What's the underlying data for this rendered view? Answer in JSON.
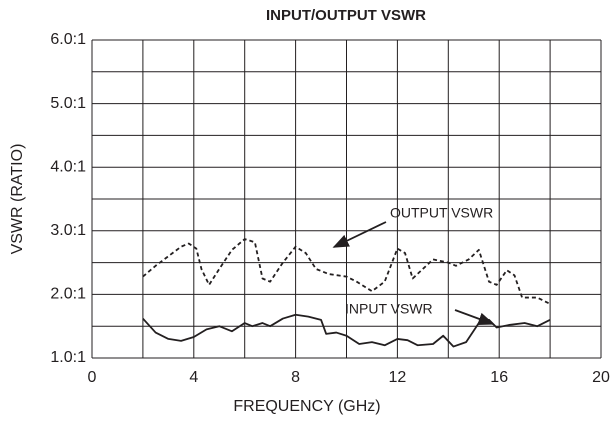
{
  "chart_data": {
    "type": "line",
    "title": "INPUT/OUTPUT VSWR",
    "x_label": "FREQUENCY (GHz)",
    "y_label": "VSWR (RATIO)",
    "xlim": [
      0,
      20
    ],
    "xticks": [
      0,
      4,
      8,
      12,
      16,
      20
    ],
    "xgrid": [
      2,
      6,
      10,
      14,
      18
    ],
    "ylim": [
      1,
      6
    ],
    "yticks": [
      {
        "value": 1,
        "label": "1.0:1"
      },
      {
        "value": 2,
        "label": "2.0:1"
      },
      {
        "value": 3,
        "label": "3.0:1"
      },
      {
        "value": 4,
        "label": "4.0:1"
      },
      {
        "value": 5,
        "label": "5.0:1"
      },
      {
        "value": 6,
        "label": "6.0:1"
      }
    ],
    "ygrid": [
      1.5,
      2.5,
      3.5,
      4.5,
      5.5
    ],
    "grid": true,
    "annotations": [
      "OUTPUT VSWR",
      "INPUT VSWR"
    ],
    "series": [
      {
        "name": "OUTPUT VSWR",
        "color": "#231f20",
        "dashed": true,
        "x": [
          2,
          2.5,
          3,
          3.5,
          3.8,
          4.1,
          4.3,
          4.6,
          5,
          5.5,
          6,
          6.4,
          6.7,
          7,
          7.5,
          8,
          8.4,
          8.8,
          9.3,
          10,
          10.4,
          11,
          11.5,
          12,
          12.3,
          12.6,
          13,
          13.4,
          14,
          14.3,
          14.8,
          15.2,
          15.6,
          15.9,
          16.3,
          16.6,
          16.9,
          17.5,
          18
        ],
        "values": [
          2.28,
          2.45,
          2.6,
          2.75,
          2.8,
          2.72,
          2.4,
          2.15,
          2.4,
          2.7,
          2.87,
          2.82,
          2.25,
          2.2,
          2.5,
          2.75,
          2.65,
          2.4,
          2.32,
          2.28,
          2.2,
          2.05,
          2.2,
          2.72,
          2.65,
          2.25,
          2.4,
          2.55,
          2.5,
          2.45,
          2.55,
          2.7,
          2.2,
          2.15,
          2.38,
          2.3,
          1.95,
          1.95,
          1.85
        ]
      },
      {
        "name": "INPUT VSWR",
        "color": "#231f20",
        "dashed": false,
        "x": [
          2,
          2.5,
          3,
          3.5,
          4,
          4.5,
          5,
          5.5,
          6,
          6.3,
          6.7,
          7,
          7.5,
          8,
          8.5,
          9,
          9.2,
          9.6,
          10,
          10.5,
          11,
          11.5,
          12,
          12.4,
          12.8,
          13.4,
          13.8,
          14.2,
          14.7,
          15.2,
          15.6,
          15.9,
          16.4,
          17,
          17.5,
          18
        ],
        "values": [
          1.62,
          1.4,
          1.3,
          1.27,
          1.33,
          1.45,
          1.5,
          1.42,
          1.55,
          1.5,
          1.55,
          1.5,
          1.62,
          1.68,
          1.65,
          1.6,
          1.38,
          1.4,
          1.35,
          1.22,
          1.25,
          1.2,
          1.3,
          1.28,
          1.2,
          1.22,
          1.35,
          1.18,
          1.25,
          1.55,
          1.6,
          1.48,
          1.52,
          1.55,
          1.5,
          1.6
        ]
      }
    ]
  }
}
